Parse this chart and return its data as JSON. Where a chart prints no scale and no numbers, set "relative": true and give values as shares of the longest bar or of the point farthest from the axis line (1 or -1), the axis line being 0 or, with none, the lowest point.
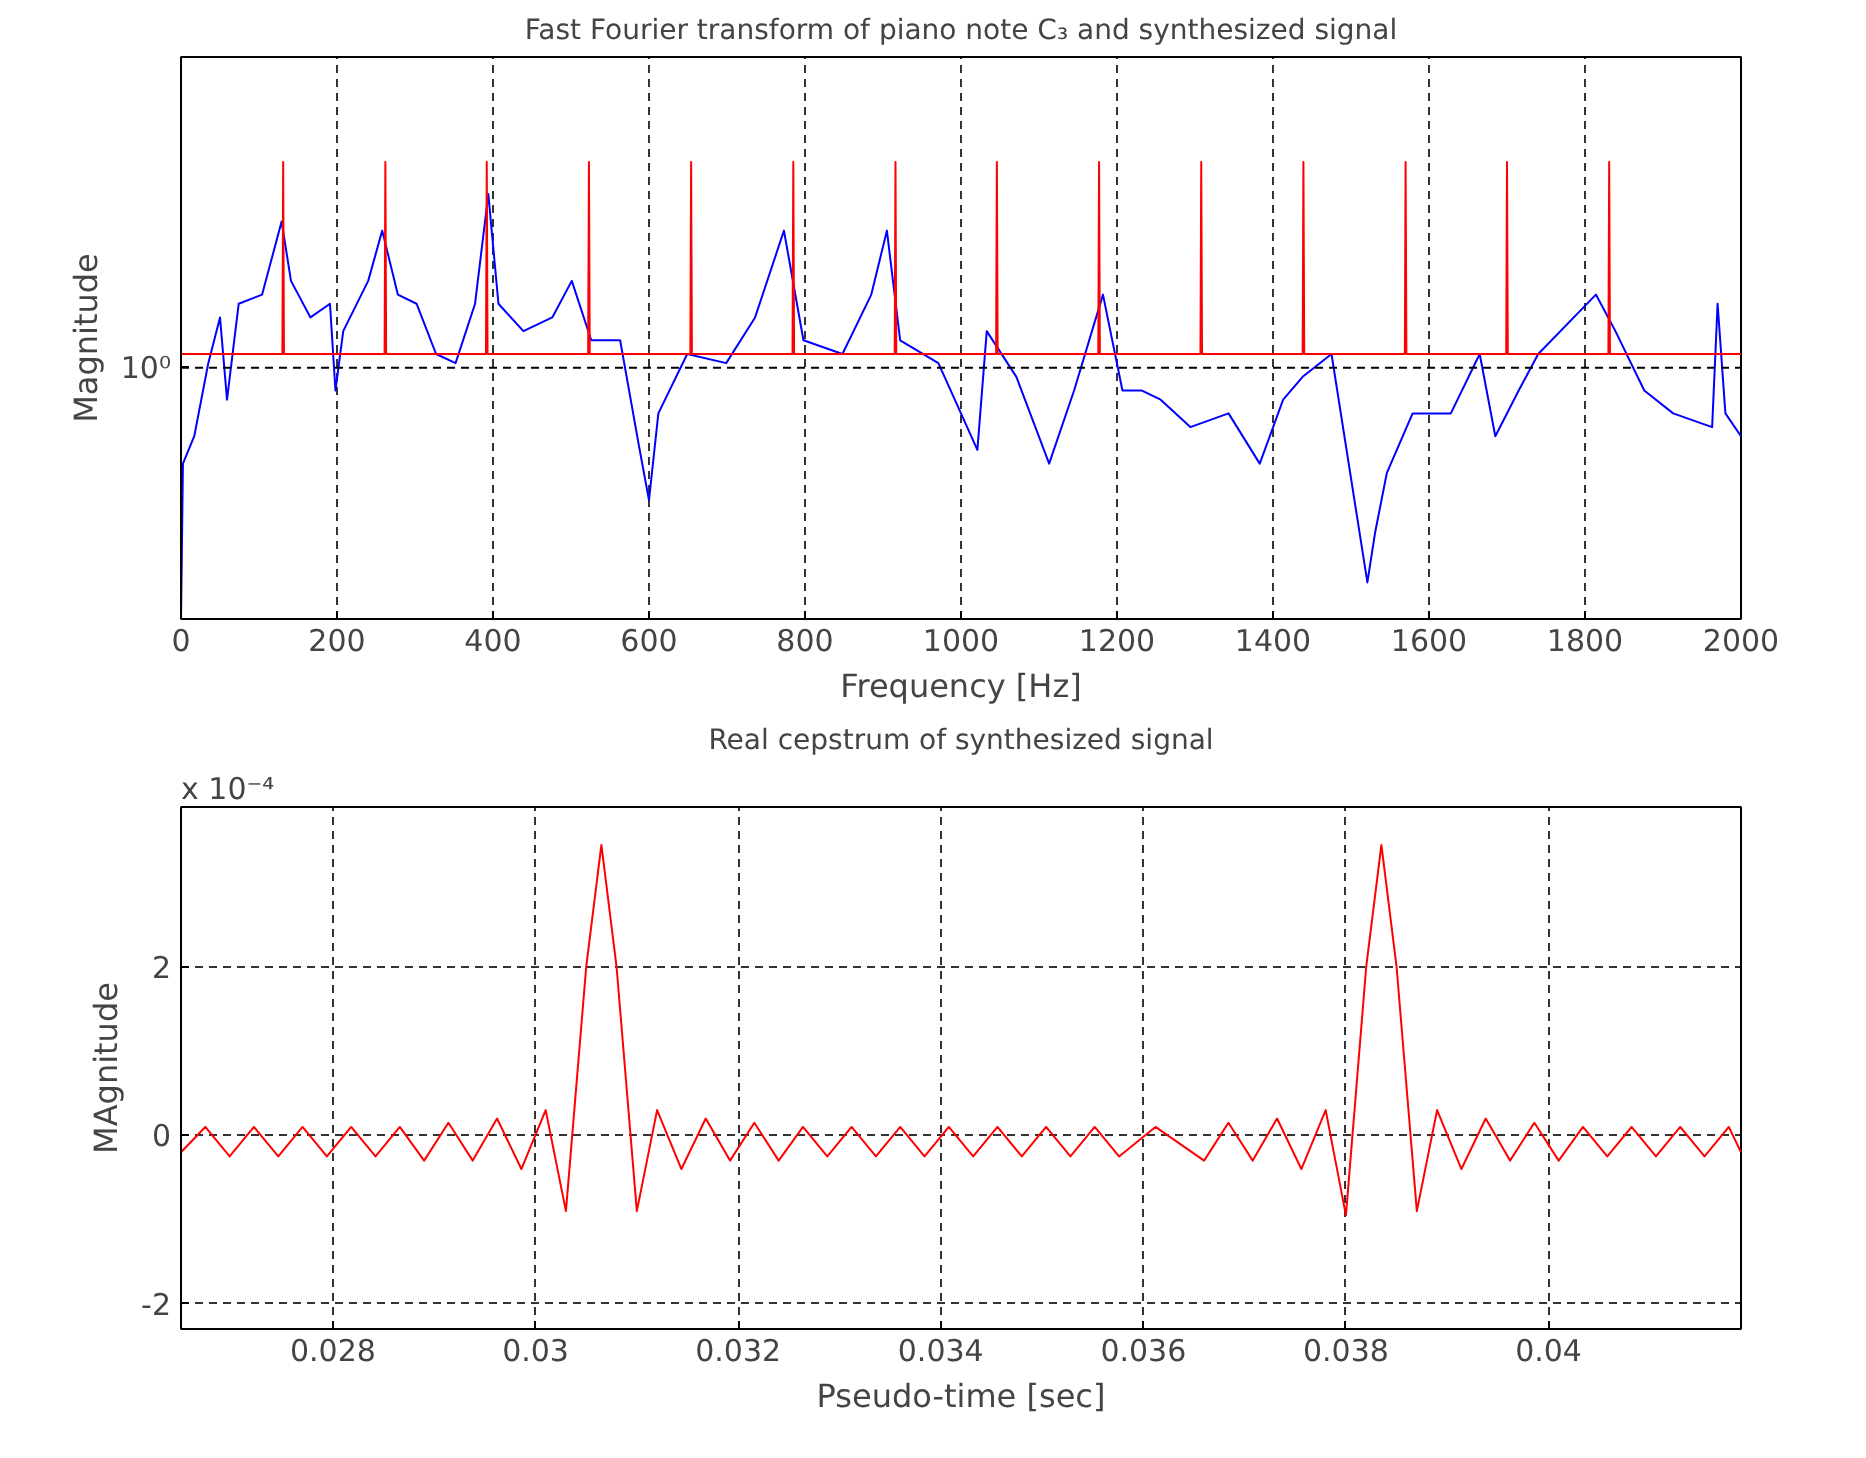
{
  "chart_data": [
    {
      "type": "line",
      "title": "Fast Fourier transform of piano note C₃ and synthesized signal",
      "xlabel": "Frequency [Hz]",
      "ylabel": "Magnitude",
      "relative": true,
      "xlim": [
        0,
        2000
      ],
      "xticks": [
        0,
        200,
        400,
        600,
        800,
        1000,
        1200,
        1400,
        1600,
        1800,
        2000
      ],
      "grid": "x",
      "ref_lines": [
        {
          "axis": "y",
          "value": 0.55,
          "label": "10⁰",
          "color": "#000000",
          "line_style": "dashed"
        }
      ],
      "series": [
        {
          "color": "#0000ff",
          "x": [
            0,
            2.5,
            17,
            35,
            50,
            59,
            74,
            104,
            129,
            141,
            166,
            191,
            198,
            208,
            240,
            258,
            278,
            302,
            327,
            352,
            377,
            394,
            407,
            439,
            476,
            501,
            526,
            563,
            587,
            600,
            612,
            649,
            699,
            736,
            773,
            798,
            848,
            885,
            905,
            922,
            971,
            1021,
            1033,
            1071,
            1113,
            1145,
            1182,
            1207,
            1232,
            1256,
            1294,
            1343,
            1383,
            1413,
            1438,
            1475,
            1521,
            1531,
            1546,
            1579,
            1628,
            1665,
            1685,
            1715,
            1740,
            1814,
            1839,
            1876,
            1913,
            1963,
            1970,
            1980,
            2000
          ],
          "values": [
            0,
            0.34,
            0.4,
            0.56,
            0.66,
            0.48,
            0.69,
            0.71,
            0.87,
            0.74,
            0.66,
            0.69,
            0.5,
            0.63,
            0.74,
            0.85,
            0.71,
            0.69,
            0.58,
            0.56,
            0.69,
            0.93,
            0.69,
            0.63,
            0.66,
            0.74,
            0.61,
            0.61,
            0.38,
            0.26,
            0.45,
            0.58,
            0.56,
            0.66,
            0.85,
            0.61,
            0.58,
            0.71,
            0.85,
            0.61,
            0.56,
            0.37,
            0.63,
            0.53,
            0.34,
            0.5,
            0.71,
            0.5,
            0.5,
            0.48,
            0.42,
            0.45,
            0.34,
            0.48,
            0.53,
            0.58,
            0.08,
            0.19,
            0.32,
            0.45,
            0.45,
            0.58,
            0.4,
            0.5,
            0.58,
            0.71,
            0.63,
            0.5,
            0.45,
            0.42,
            0.69,
            0.45,
            0.4
          ]
        },
        {
          "color": "#ff0000",
          "x": [
            0,
            130,
            131,
            132,
            261,
            262,
            263,
            391,
            392,
            393,
            522,
            523,
            524,
            653,
            654,
            655,
            784,
            785,
            786,
            915,
            916,
            917,
            1045,
            1046,
            1047,
            1176,
            1177,
            1178,
            1307,
            1308,
            1309,
            1438,
            1439,
            1440,
            1569,
            1570,
            1571,
            1699,
            1700,
            1701,
            1830,
            1831,
            1832,
            2000
          ],
          "values": [
            0.58,
            0.58,
            1,
            0.58,
            0.58,
            1,
            0.58,
            0.58,
            1,
            0.58,
            0.58,
            1,
            0.58,
            0.58,
            1,
            0.58,
            0.58,
            1,
            0.58,
            0.58,
            1,
            0.58,
            0.58,
            1,
            0.58,
            0.58,
            1,
            0.58,
            0.58,
            1,
            0.58,
            0.58,
            1,
            0.58,
            0.58,
            1,
            0.58,
            0.58,
            1,
            0.58,
            0.58,
            1,
            0.58,
            0.58
          ]
        }
      ]
    },
    {
      "type": "line",
      "title": "Real cepstrum of synthesized signal",
      "xlabel": "Pseudo-time [sec]",
      "ylabel": "MAgnitude",
      "annotations": [
        "x 10⁻⁴"
      ],
      "xlim": [
        0.0265,
        0.0419
      ],
      "ylim": [
        -2.3,
        3.9
      ],
      "xticks": [
        0.028,
        0.03,
        0.032,
        0.034,
        0.036,
        0.038,
        0.04
      ],
      "yticks": [
        -2,
        0,
        2
      ],
      "grid": true,
      "series": [
        {
          "color": "#ff0000",
          "x": [
            0.0265,
            0.02674,
            0.02698,
            0.02722,
            0.02746,
            0.0277,
            0.02794,
            0.02818,
            0.02842,
            0.02866,
            0.0289,
            0.02914,
            0.02938,
            0.02962,
            0.02986,
            0.0301,
            0.0303,
            0.0305,
            0.03065,
            0.0308,
            0.031,
            0.0312,
            0.03144,
            0.03168,
            0.03192,
            0.03216,
            0.0324,
            0.03264,
            0.03288,
            0.03312,
            0.03336,
            0.0336,
            0.03384,
            0.03408,
            0.03432,
            0.03456,
            0.0348,
            0.03504,
            0.03528,
            0.03552,
            0.03576,
            0.03612,
            0.0366,
            0.03684,
            0.03708,
            0.03732,
            0.03756,
            0.0378,
            0.038,
            0.0382,
            0.03835,
            0.0385,
            0.0387,
            0.0389,
            0.03914,
            0.03938,
            0.03962,
            0.03986,
            0.0401,
            0.04034,
            0.04058,
            0.04082,
            0.04106,
            0.0413,
            0.04154,
            0.04178,
            0.0419
          ],
          "values": [
            -0.2,
            0.1,
            -0.25,
            0.1,
            -0.25,
            0.1,
            -0.25,
            0.1,
            -0.25,
            0.1,
            -0.3,
            0.15,
            -0.3,
            0.2,
            -0.4,
            0.3,
            -0.9,
            2.0,
            3.45,
            2.0,
            -0.9,
            0.3,
            -0.4,
            0.2,
            -0.3,
            0.15,
            -0.3,
            0.1,
            -0.25,
            0.1,
            -0.25,
            0.1,
            -0.25,
            0.1,
            -0.25,
            0.1,
            -0.25,
            0.1,
            -0.25,
            0.1,
            -0.25,
            0.1,
            -0.3,
            0.15,
            -0.3,
            0.2,
            -0.4,
            0.3,
            -0.95,
            2.0,
            3.45,
            2.0,
            -0.9,
            0.3,
            -0.4,
            0.2,
            -0.3,
            0.15,
            -0.3,
            0.1,
            -0.25,
            0.1,
            -0.25,
            0.1,
            -0.25,
            0.1,
            -0.2
          ]
        }
      ]
    }
  ]
}
